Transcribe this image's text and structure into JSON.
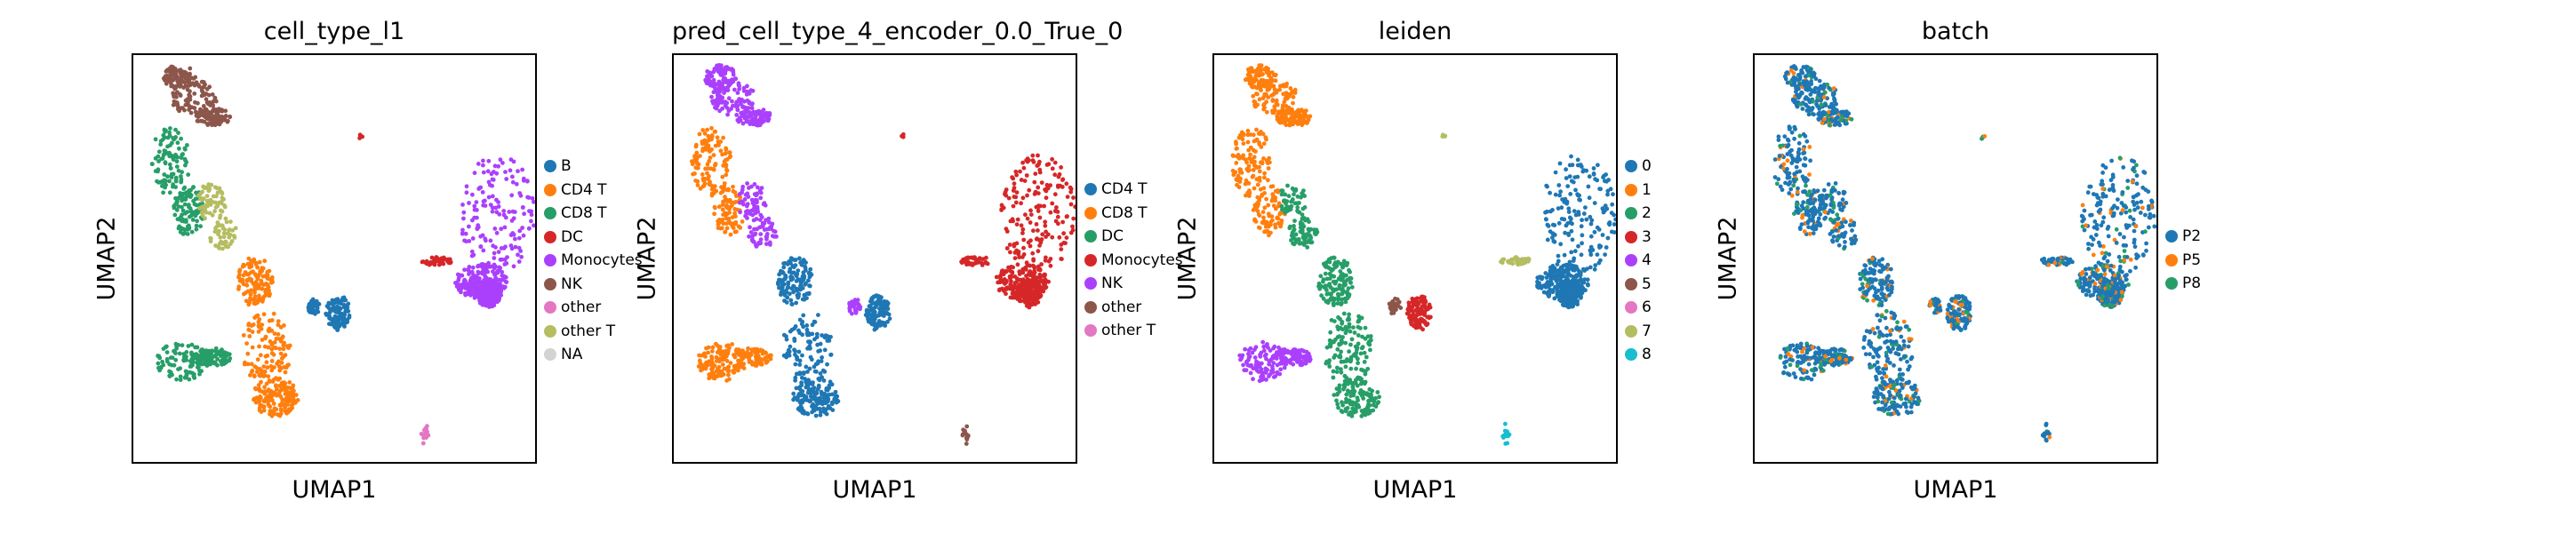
{
  "palette": {
    "blue": "#1f77b4",
    "orange": "#ff7f0e",
    "green": "#279e68",
    "red": "#d62728",
    "purple": "#aa40fc",
    "brown": "#8c564b",
    "pink": "#e377c2",
    "olive": "#b5bd61",
    "cyan": "#17becf",
    "grey": "#d3d3d3"
  },
  "chart_data": [
    {
      "type": "scatter",
      "title": "cell_type_l1",
      "xlabel": "UMAP1",
      "ylabel": "UMAP2",
      "grid": false,
      "legend_position": "right",
      "legend": [
        {
          "label": "B",
          "color": "#1f77b4"
        },
        {
          "label": "CD4 T",
          "color": "#ff7f0e"
        },
        {
          "label": "CD8 T",
          "color": "#279e68"
        },
        {
          "label": "DC",
          "color": "#d62728"
        },
        {
          "label": "Monocytes",
          "color": "#aa40fc"
        },
        {
          "label": "NK",
          "color": "#8c564b"
        },
        {
          "label": "other",
          "color": "#e377c2"
        },
        {
          "label": "other T",
          "color": "#b5bd61"
        },
        {
          "label": "NA",
          "color": "#d3d3d3"
        }
      ],
      "clusters": {
        "nk_top": "#8c564b",
        "left_upper": "#279e68",
        "left_mid": "#b5bd61",
        "center_lower": "#ff7f0e",
        "lower_left": "#279e68",
        "b_blob": "#1f77b4",
        "small_island": "#1f77b4",
        "right_big": "#aa40fc",
        "dc_arm": "#d62728",
        "top_speck": "#d62728",
        "bottom_tiny": "#e377c2"
      }
    },
    {
      "type": "scatter",
      "title": "pred_cell_type_4_encoder_0.0_True_0",
      "xlabel": "UMAP1",
      "ylabel": "UMAP2",
      "grid": false,
      "legend_position": "right",
      "legend": [
        {
          "label": "CD4 T",
          "color": "#1f77b4"
        },
        {
          "label": "CD8 T",
          "color": "#ff7f0e"
        },
        {
          "label": "DC",
          "color": "#279e68"
        },
        {
          "label": "Monocytes",
          "color": "#d62728"
        },
        {
          "label": "NK",
          "color": "#aa40fc"
        },
        {
          "label": "other",
          "color": "#8c564b"
        },
        {
          "label": "other T",
          "color": "#e377c2"
        }
      ],
      "clusters": {
        "nk_top": "#aa40fc",
        "left_upper": "#ff7f0e",
        "left_mid": "#aa40fc",
        "center_lower": "#1f77b4",
        "lower_left": "#ff7f0e",
        "b_blob": "#1f77b4",
        "small_island": "#aa40fc",
        "right_big": "#d62728",
        "dc_arm": "#d62728",
        "top_speck": "#d62728",
        "bottom_tiny": "#8c564b"
      }
    },
    {
      "type": "scatter",
      "title": "leiden",
      "xlabel": "UMAP1",
      "ylabel": "UMAP2",
      "grid": false,
      "legend_position": "right",
      "legend": [
        {
          "label": "0",
          "color": "#1f77b4"
        },
        {
          "label": "1",
          "color": "#ff7f0e"
        },
        {
          "label": "2",
          "color": "#279e68"
        },
        {
          "label": "3",
          "color": "#d62728"
        },
        {
          "label": "4",
          "color": "#aa40fc"
        },
        {
          "label": "5",
          "color": "#8c564b"
        },
        {
          "label": "6",
          "color": "#e377c2"
        },
        {
          "label": "7",
          "color": "#b5bd61"
        },
        {
          "label": "8",
          "color": "#17becf"
        }
      ],
      "clusters": {
        "nk_top": "#ff7f0e",
        "left_upper": "#ff7f0e",
        "left_mid": "#279e68",
        "center_lower": "#279e68",
        "lower_left": "#aa40fc",
        "b_blob": "#d62728",
        "small_island": "#8c564b",
        "right_big": "#1f77b4",
        "dc_arm": "#b5bd61",
        "top_speck": "#b5bd61",
        "bottom_tiny": "#17becf"
      }
    },
    {
      "type": "scatter",
      "title": "batch",
      "xlabel": "UMAP1",
      "ylabel": "UMAP2",
      "grid": false,
      "legend_position": "right",
      "legend": [
        {
          "label": "P2",
          "color": "#1f77b4"
        },
        {
          "label": "P5",
          "color": "#ff7f0e"
        },
        {
          "label": "P8",
          "color": "#279e68"
        }
      ],
      "clusters": {
        "nk_top": "#1f77b4",
        "left_upper": "#1f77b4",
        "left_mid": "#1f77b4",
        "center_lower": "#1f77b4",
        "lower_left": "#1f77b4",
        "b_blob": "#1f77b4",
        "small_island": "#1f77b4",
        "right_big": "#1f77b4",
        "dc_arm": "#1f77b4",
        "top_speck": "#1f77b4",
        "bottom_tiny": "#1f77b4"
      },
      "mixed_colors": [
        "#ff7f0e",
        "#279e68"
      ]
    }
  ]
}
